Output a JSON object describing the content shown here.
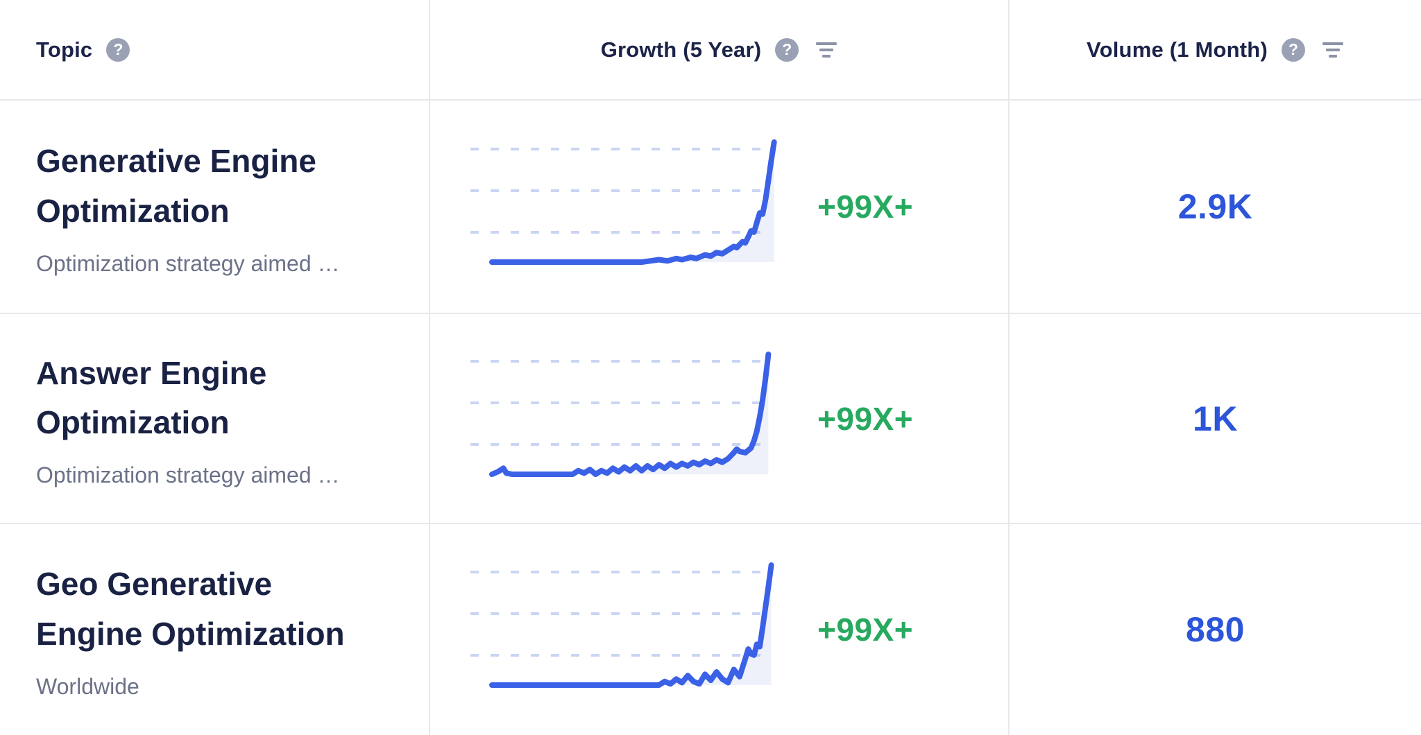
{
  "header": {
    "help_glyph": "?",
    "columns": [
      {
        "label": "Topic"
      },
      {
        "label": "Growth (5 Year)"
      },
      {
        "label": "Volume (1 Month)"
      }
    ]
  },
  "rows": [
    {
      "topic": "Generative Engine Optimization",
      "description": "Optimization strategy aimed …",
      "growth_label": "+99X+",
      "volume": "2.9K",
      "sparkline": [
        [
          0,
          0
        ],
        [
          52,
          0
        ],
        [
          55,
          1
        ],
        [
          58,
          2
        ],
        [
          61,
          1
        ],
        [
          64,
          3
        ],
        [
          66,
          2
        ],
        [
          69,
          4
        ],
        [
          71,
          3
        ],
        [
          74,
          6
        ],
        [
          76,
          5
        ],
        [
          78,
          8
        ],
        [
          80,
          7
        ],
        [
          82,
          10
        ],
        [
          84,
          13
        ],
        [
          85,
          12
        ],
        [
          87,
          17
        ],
        [
          88,
          16
        ],
        [
          89,
          21
        ],
        [
          90,
          26
        ],
        [
          91,
          25
        ],
        [
          92,
          33
        ],
        [
          93,
          41
        ],
        [
          94,
          40
        ],
        [
          95,
          52
        ],
        [
          96,
          68
        ],
        [
          97,
          85
        ],
        [
          98,
          100
        ]
      ]
    },
    {
      "topic": "Answer Engine Optimization",
      "description": "Optimization strategy aimed …",
      "growth_label": "+99X+",
      "volume": "1K",
      "sparkline": [
        [
          0,
          0
        ],
        [
          2,
          2
        ],
        [
          4,
          5
        ],
        [
          5,
          1
        ],
        [
          7,
          0
        ],
        [
          28,
          0
        ],
        [
          30,
          3
        ],
        [
          32,
          1
        ],
        [
          34,
          4
        ],
        [
          36,
          0
        ],
        [
          38,
          3
        ],
        [
          40,
          1
        ],
        [
          42,
          5
        ],
        [
          44,
          2
        ],
        [
          46,
          6
        ],
        [
          48,
          3
        ],
        [
          50,
          7
        ],
        [
          52,
          3
        ],
        [
          54,
          7
        ],
        [
          56,
          4
        ],
        [
          58,
          8
        ],
        [
          60,
          5
        ],
        [
          62,
          9
        ],
        [
          64,
          6
        ],
        [
          66,
          9
        ],
        [
          68,
          7
        ],
        [
          70,
          10
        ],
        [
          72,
          8
        ],
        [
          74,
          11
        ],
        [
          76,
          9
        ],
        [
          78,
          12
        ],
        [
          80,
          10
        ],
        [
          82,
          13
        ],
        [
          84,
          18
        ],
        [
          85,
          21
        ],
        [
          86,
          19
        ],
        [
          88,
          18
        ],
        [
          90,
          22
        ],
        [
          91,
          28
        ],
        [
          92,
          36
        ],
        [
          93,
          48
        ],
        [
          94,
          62
        ],
        [
          95,
          80
        ],
        [
          96,
          100
        ]
      ]
    },
    {
      "topic": "Geo Generative Engine Optimization",
      "description": "Worldwide",
      "growth_label": "+99X+",
      "volume": "880",
      "sparkline": [
        [
          0,
          0
        ],
        [
          58,
          0
        ],
        [
          60,
          3
        ],
        [
          62,
          1
        ],
        [
          64,
          5
        ],
        [
          66,
          2
        ],
        [
          68,
          8
        ],
        [
          70,
          3
        ],
        [
          72,
          1
        ],
        [
          74,
          9
        ],
        [
          76,
          4
        ],
        [
          78,
          11
        ],
        [
          80,
          5
        ],
        [
          82,
          2
        ],
        [
          84,
          13
        ],
        [
          86,
          7
        ],
        [
          88,
          22
        ],
        [
          89,
          30
        ],
        [
          90,
          26
        ],
        [
          91,
          25
        ],
        [
          92,
          34
        ],
        [
          93,
          32
        ],
        [
          94,
          48
        ],
        [
          95,
          65
        ],
        [
          96,
          82
        ],
        [
          97,
          100
        ]
      ]
    }
  ],
  "colors": {
    "accent_blue": "#2c55d9",
    "line_blue": "#3b61e6",
    "growth_green": "#27a95f",
    "title_navy": "#1a2244",
    "muted_gray": "#6b7288",
    "icon_gray": "#9aa1b4",
    "separator": "#e7e8ec",
    "gridline": "#c9d5f2"
  }
}
